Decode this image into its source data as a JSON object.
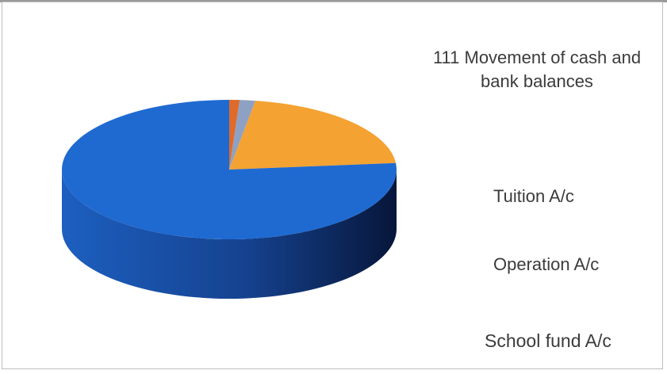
{
  "chart_data": {
    "type": "pie",
    "title": "",
    "three_d": true,
    "start_angle_deg": 0,
    "direction": "clockwise",
    "slices": [
      {
        "label": "111 Movement of cash and\nbank balances",
        "value": 1.0,
        "color": "#e06a2a",
        "side_color": "#8c3b12"
      },
      {
        "label": "Tuition A/c",
        "value": 1.5,
        "color": "#8da1c4",
        "side_color": "#4f5e7a"
      },
      {
        "label": "Operation A/c",
        "value": 21.0,
        "color": "#f4a232",
        "side_color": "#9a5a10"
      },
      {
        "label": "School fund A/c",
        "value": 76.5,
        "color": "#1f6ad1",
        "side_color": "#10316f"
      }
    ],
    "legend_placement": "right"
  }
}
